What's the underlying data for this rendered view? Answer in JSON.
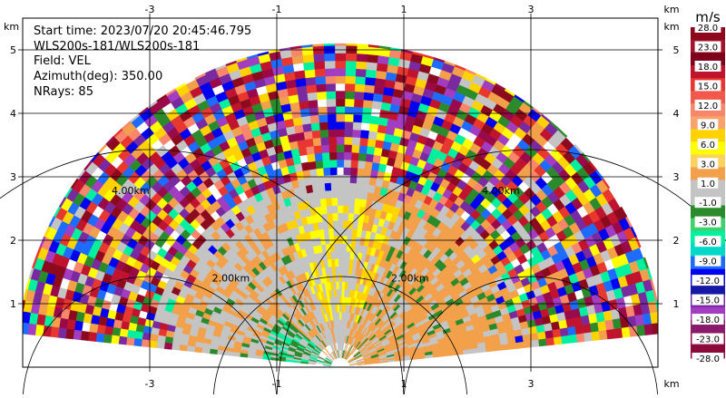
{
  "chart_data": {
    "type": "heatmap",
    "subtype": "radar-ppi-sector",
    "info": {
      "start_time": "Start time: 2023/07/20 20:45:46.795",
      "instrument": "WLS200s-181/WLS200s-181",
      "field": "Field: VEL",
      "azimuth": "Azimuth(deg): 350.00",
      "nrays": "NRays: 85"
    },
    "x_unit": "km",
    "y_unit": "km",
    "xlim": [
      -5.0,
      5.0
    ],
    "ylim": [
      0.0,
      5.8
    ],
    "x_ticks": [
      -3,
      -1,
      1,
      3
    ],
    "y_ticks": [
      1,
      2,
      3,
      4,
      5
    ],
    "grid": true,
    "sector_angle_range_deg": [
      6,
      174
    ],
    "max_range_km": 5.1,
    "range_ring_labels": [
      {
        "text": "2.00km",
        "x": -2.02,
        "y": 1.35
      },
      {
        "text": "2.00km",
        "x": 0.8,
        "y": 1.35
      },
      {
        "text": "4.00km",
        "x": -3.6,
        "y": 2.73
      },
      {
        "text": "4.00km",
        "x": 2.23,
        "y": 2.73
      }
    ],
    "range_rings_km": [
      2.0,
      4.0
    ],
    "colorbar": {
      "unit": "m/s",
      "ticks": [
        "28.0",
        "23.0",
        "18.0",
        "15.0",
        "12.0",
        "9.0",
        "6.0",
        "3.0",
        "1.0",
        "-1.0",
        "-3.0",
        "-6.0",
        "-9.0",
        "-12.0",
        "-15.0",
        "-18.0",
        "-23.0",
        "-28.0"
      ],
      "colors": [
        "#8b0a1e",
        "#a5122a",
        "#7f001a",
        "#c0142e",
        "#e8372f",
        "#f0594b",
        "#f7866b",
        "#f9a26b",
        "#ffd200",
        "#ffff00",
        "#fbd25e",
        "#f2a04a",
        "#c4c4c4",
        "#c4c4c4",
        "#2b8a2b",
        "#3fd070",
        "#00f0a0",
        "#00d8c8",
        "#1e6cff",
        "#0000f0",
        "#1818a8",
        "#7a2aa0",
        "#a23cc0",
        "#8a1a6a",
        "#9a0a4a",
        "#8a0a3a"
      ]
    },
    "palette": {
      "near_field": [
        "#c4c4c4",
        "#f2a04a",
        "#ffd200",
        "#ffff00",
        "#2b8a2b",
        "#00f0a0"
      ],
      "far_field": [
        "#8b0a1e",
        "#c0142e",
        "#e8372f",
        "#f7866b",
        "#ffd200",
        "#ffff00",
        "#2b8a2b",
        "#00f0a0",
        "#1e6cff",
        "#0000f0",
        "#7a2aa0",
        "#a23cc0",
        "#f2a04a",
        "#c4c4c4",
        "#9a0a4a"
      ]
    }
  }
}
